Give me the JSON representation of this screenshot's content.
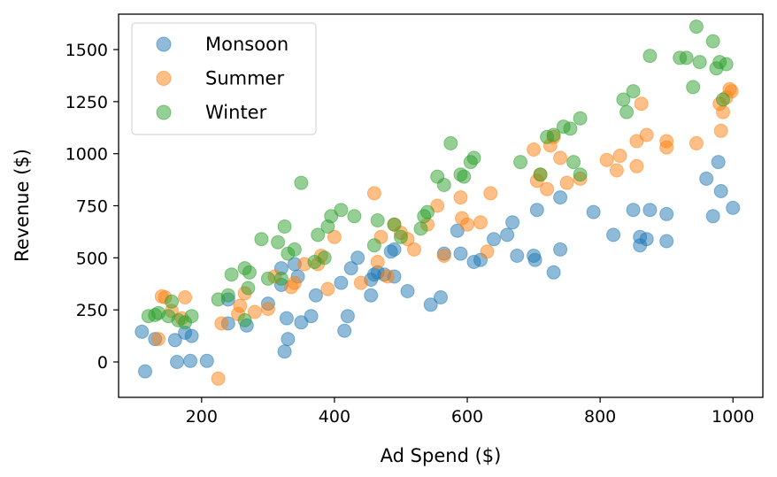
{
  "chart_data": {
    "type": "scatter",
    "xlabel": "Ad Spend ($)",
    "ylabel": "Revenue ($)",
    "xlim": [
      75,
      1045
    ],
    "ylim": [
      -170,
      1670
    ],
    "xticks": [
      200,
      400,
      600,
      800,
      1000
    ],
    "yticks": [
      0,
      250,
      500,
      750,
      1000,
      1250,
      1500
    ],
    "grid": false,
    "legend_position": "top-left",
    "series": [
      {
        "name": "Monsoon",
        "color": "#1f77b4",
        "points": [
          [
            110,
            145
          ],
          [
            115,
            -45
          ],
          [
            130,
            110
          ],
          [
            160,
            105
          ],
          [
            163,
            0
          ],
          [
            175,
            140
          ],
          [
            185,
            125
          ],
          [
            183,
            5
          ],
          [
            208,
            5
          ],
          [
            240,
            185
          ],
          [
            240,
            300
          ],
          [
            268,
            175
          ],
          [
            300,
            280
          ],
          [
            320,
            370
          ],
          [
            325,
            50
          ],
          [
            320,
            450
          ],
          [
            328,
            210
          ],
          [
            330,
            110
          ],
          [
            340,
            470
          ],
          [
            345,
            410
          ],
          [
            350,
            190
          ],
          [
            365,
            220
          ],
          [
            372,
            320
          ],
          [
            410,
            380
          ],
          [
            415,
            150
          ],
          [
            420,
            220
          ],
          [
            425,
            450
          ],
          [
            435,
            500
          ],
          [
            455,
            320
          ],
          [
            455,
            395
          ],
          [
            460,
            420
          ],
          [
            465,
            430
          ],
          [
            475,
            420
          ],
          [
            485,
            530
          ],
          [
            490,
            410
          ],
          [
            490,
            540
          ],
          [
            510,
            340
          ],
          [
            545,
            275
          ],
          [
            560,
            310
          ],
          [
            565,
            520
          ],
          [
            585,
            630
          ],
          [
            590,
            520
          ],
          [
            610,
            480
          ],
          [
            620,
            490
          ],
          [
            640,
            590
          ],
          [
            660,
            610
          ],
          [
            668,
            670
          ],
          [
            675,
            510
          ],
          [
            700,
            510
          ],
          [
            702,
            490
          ],
          [
            705,
            730
          ],
          [
            730,
            430
          ],
          [
            740,
            540
          ],
          [
            740,
            790
          ],
          [
            790,
            720
          ],
          [
            820,
            610
          ],
          [
            850,
            730
          ],
          [
            860,
            600
          ],
          [
            860,
            560
          ],
          [
            870,
            590
          ],
          [
            875,
            730
          ],
          [
            900,
            710
          ],
          [
            900,
            580
          ],
          [
            960,
            880
          ],
          [
            970,
            700
          ],
          [
            978,
            960
          ],
          [
            982,
            820
          ],
          [
            1000,
            740
          ]
        ]
      },
      {
        "name": "Summer",
        "color": "#ff7f0e",
        "points": [
          [
            135,
            110
          ],
          [
            140,
            315
          ],
          [
            145,
            310
          ],
          [
            155,
            245
          ],
          [
            170,
            210
          ],
          [
            175,
            310
          ],
          [
            225,
            -80
          ],
          [
            230,
            185
          ],
          [
            255,
            230
          ],
          [
            258,
            270
          ],
          [
            265,
            330
          ],
          [
            280,
            240
          ],
          [
            300,
            255
          ],
          [
            310,
            410
          ],
          [
            335,
            360
          ],
          [
            340,
            380
          ],
          [
            355,
            470
          ],
          [
            375,
            470
          ],
          [
            380,
            510
          ],
          [
            390,
            350
          ],
          [
            400,
            600
          ],
          [
            440,
            380
          ],
          [
            460,
            810
          ],
          [
            465,
            480
          ],
          [
            470,
            600
          ],
          [
            480,
            410
          ],
          [
            490,
            660
          ],
          [
            500,
            620
          ],
          [
            510,
            590
          ],
          [
            520,
            540
          ],
          [
            540,
            660
          ],
          [
            555,
            750
          ],
          [
            565,
            510
          ],
          [
            590,
            790
          ],
          [
            592,
            690
          ],
          [
            600,
            660
          ],
          [
            620,
            670
          ],
          [
            630,
            530
          ],
          [
            635,
            810
          ],
          [
            700,
            1020
          ],
          [
            705,
            870
          ],
          [
            710,
            900
          ],
          [
            720,
            830
          ],
          [
            725,
            1040
          ],
          [
            730,
            1080
          ],
          [
            740,
            980
          ],
          [
            750,
            860
          ],
          [
            770,
            880
          ],
          [
            810,
            970
          ],
          [
            825,
            920
          ],
          [
            830,
            990
          ],
          [
            855,
            1060
          ],
          [
            855,
            940
          ],
          [
            862,
            1240
          ],
          [
            870,
            1090
          ],
          [
            900,
            1060
          ],
          [
            900,
            1030
          ],
          [
            945,
            1050
          ],
          [
            980,
            1240
          ],
          [
            982,
            1110
          ],
          [
            985,
            1200
          ],
          [
            990,
            1270
          ],
          [
            995,
            1310
          ],
          [
            998,
            1300
          ]
        ]
      },
      {
        "name": "Winter",
        "color": "#2ca02c",
        "points": [
          [
            120,
            220
          ],
          [
            130,
            225
          ],
          [
            135,
            235
          ],
          [
            150,
            220
          ],
          [
            155,
            290
          ],
          [
            165,
            200
          ],
          [
            175,
            190
          ],
          [
            185,
            220
          ],
          [
            225,
            300
          ],
          [
            240,
            320
          ],
          [
            245,
            420
          ],
          [
            265,
            200
          ],
          [
            265,
            450
          ],
          [
            270,
            355
          ],
          [
            272,
            430
          ],
          [
            290,
            590
          ],
          [
            300,
            400
          ],
          [
            315,
            575
          ],
          [
            320,
            400
          ],
          [
            325,
            650
          ],
          [
            330,
            520
          ],
          [
            340,
            540
          ],
          [
            350,
            860
          ],
          [
            370,
            480
          ],
          [
            375,
            610
          ],
          [
            385,
            500
          ],
          [
            390,
            650
          ],
          [
            395,
            700
          ],
          [
            410,
            730
          ],
          [
            430,
            700
          ],
          [
            460,
            560
          ],
          [
            465,
            680
          ],
          [
            490,
            660
          ],
          [
            500,
            600
          ],
          [
            530,
            640
          ],
          [
            535,
            700
          ],
          [
            540,
            720
          ],
          [
            555,
            890
          ],
          [
            565,
            850
          ],
          [
            575,
            1050
          ],
          [
            590,
            900
          ],
          [
            595,
            890
          ],
          [
            605,
            960
          ],
          [
            610,
            980
          ],
          [
            680,
            960
          ],
          [
            710,
            900
          ],
          [
            720,
            1080
          ],
          [
            730,
            1090
          ],
          [
            745,
            1130
          ],
          [
            755,
            1120
          ],
          [
            760,
            960
          ],
          [
            770,
            1170
          ],
          [
            770,
            900
          ],
          [
            835,
            1260
          ],
          [
            840,
            1200
          ],
          [
            850,
            1300
          ],
          [
            875,
            1470
          ],
          [
            920,
            1460
          ],
          [
            930,
            1460
          ],
          [
            940,
            1320
          ],
          [
            945,
            1610
          ],
          [
            950,
            1440
          ],
          [
            970,
            1540
          ],
          [
            975,
            1410
          ],
          [
            980,
            1440
          ],
          [
            985,
            1260
          ],
          [
            990,
            1430
          ]
        ]
      }
    ]
  }
}
